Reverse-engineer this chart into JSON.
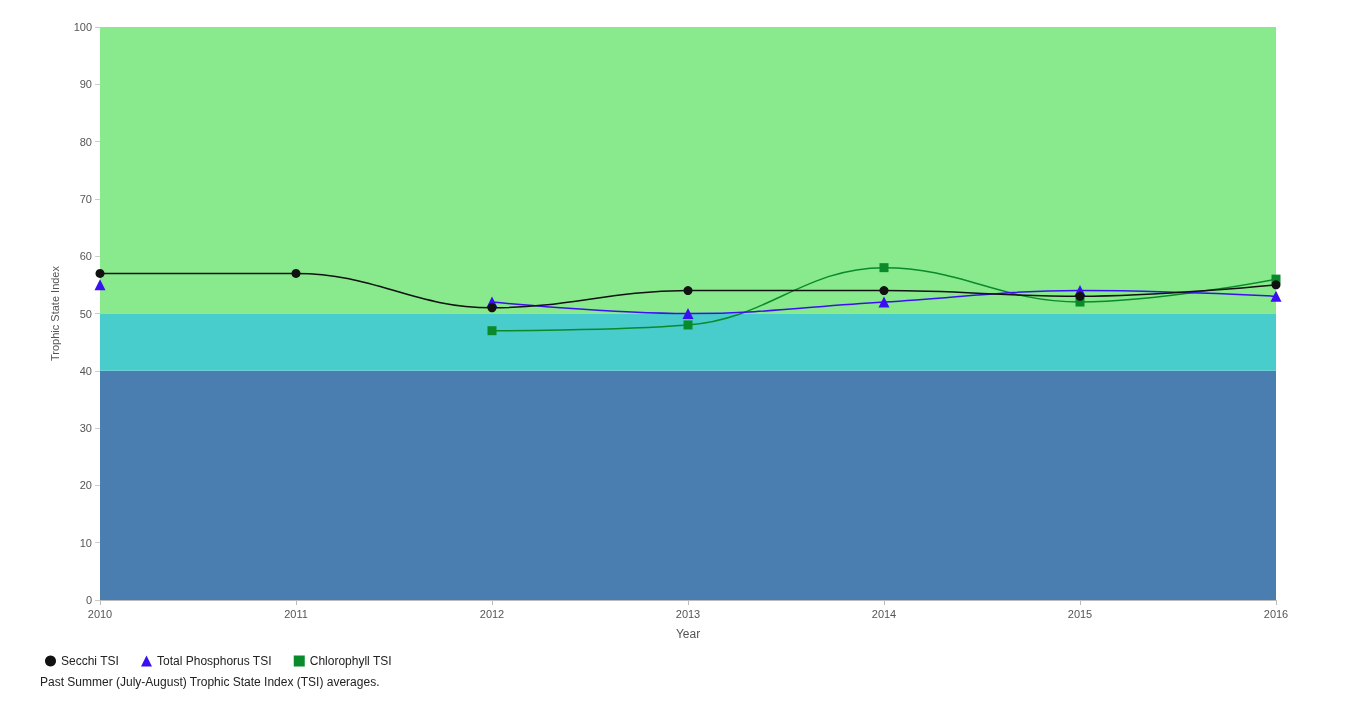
{
  "chart_data": {
    "type": "line",
    "xlabel": "Year",
    "ylabel": "Trophic State Index",
    "categories": [
      "2010",
      "2011",
      "2012",
      "2013",
      "2014",
      "2015",
      "2016"
    ],
    "series": [
      {
        "name": "Secchi TSI",
        "color": "#111111",
        "marker": "circle",
        "values": [
          57,
          57,
          51,
          54,
          54,
          53,
          55
        ]
      },
      {
        "name": "Total Phosphorus TSI",
        "color": "#3a10f0",
        "marker": "triangle",
        "values": [
          55,
          null,
          52,
          50,
          52,
          54,
          53
        ]
      },
      {
        "name": "Chlorophyll TSI",
        "color": "#0a8a2a",
        "marker": "square",
        "values": [
          null,
          null,
          47,
          48,
          58,
          52,
          56
        ]
      }
    ],
    "ylim": [
      0,
      100
    ],
    "yticks": [
      0,
      10,
      20,
      30,
      40,
      50,
      60,
      70,
      80,
      90,
      100
    ],
    "bands": [
      {
        "axis": "y",
        "from": 0,
        "to": 40,
        "color": "#4b7eb0"
      },
      {
        "axis": "y",
        "from": 40,
        "to": 50,
        "color": "#48cccc"
      },
      {
        "axis": "y",
        "from": 50,
        "to": 100,
        "color": "#88ea8c"
      }
    ],
    "grid": "y",
    "legend": "bottom left",
    "line_style": "solid",
    "annotations": [
      "Past Summer (July-August) Trophic State Index (TSI) averages."
    ]
  }
}
